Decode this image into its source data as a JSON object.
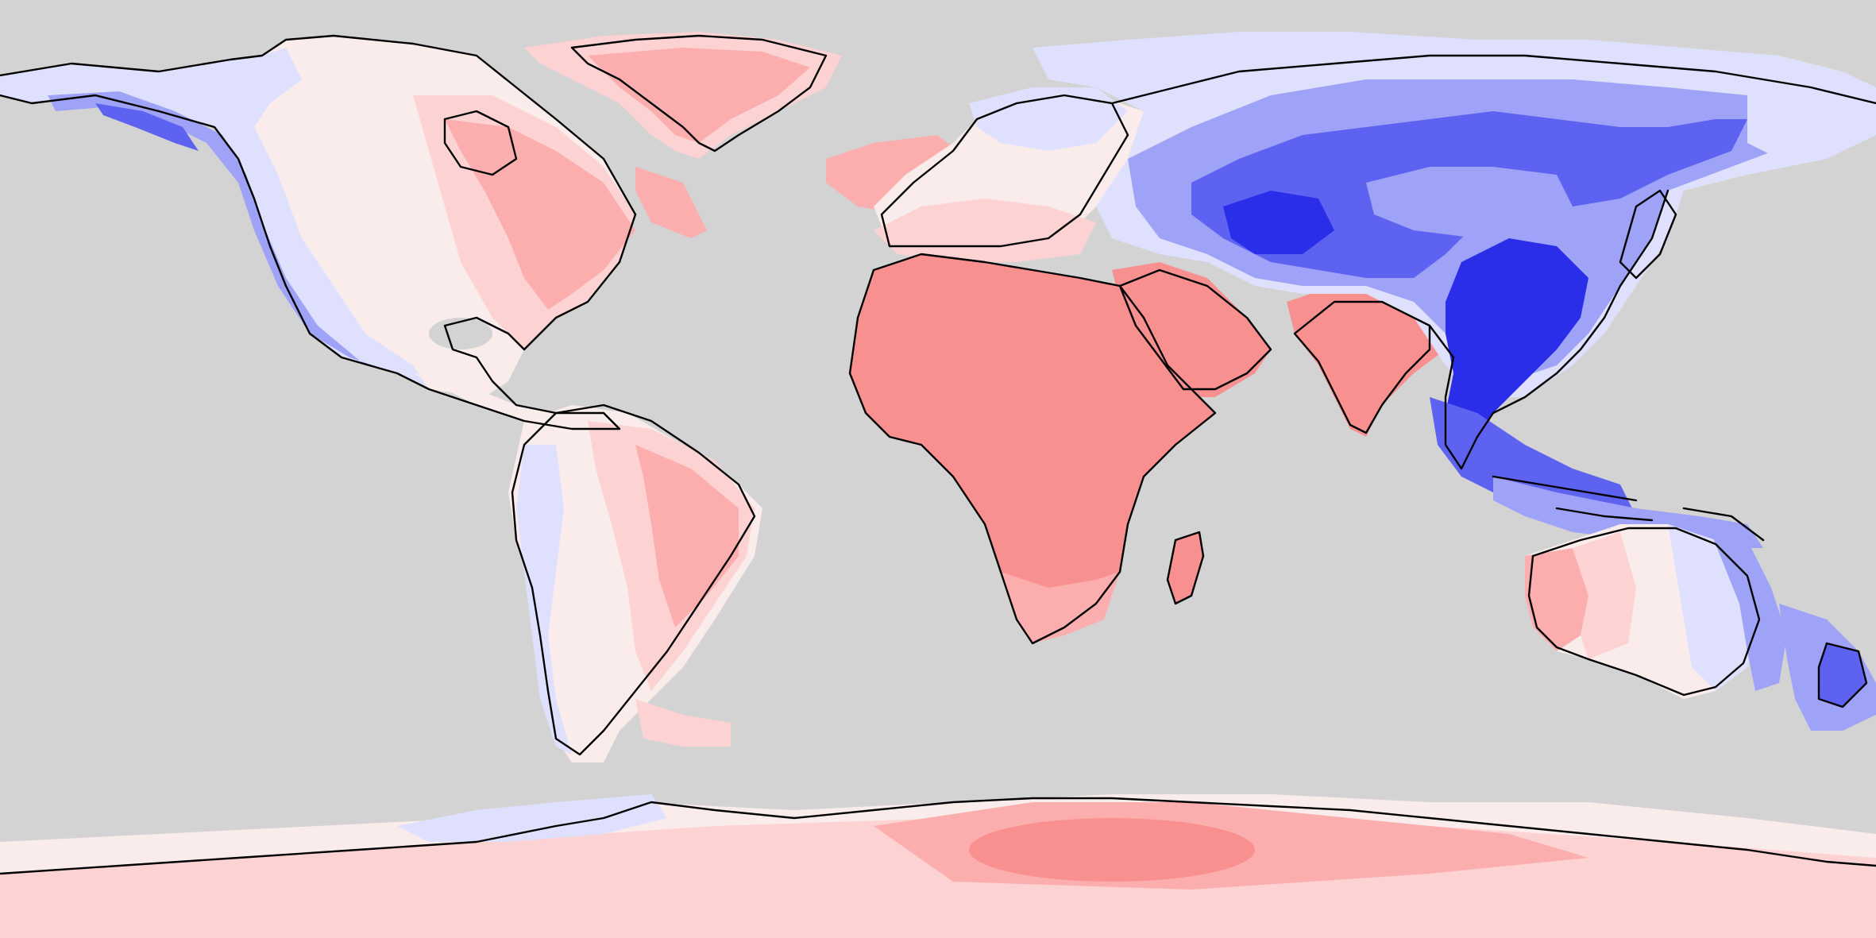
{
  "map": {
    "projection": "equirectangular",
    "background_color": "#d3d3d3",
    "coastline_color": "#000000",
    "color_scale": {
      "strong_negative": "#2a2ee8",
      "negative": "#5d62f0",
      "mild_negative": "#9fa3f7",
      "slight_negative": "#dfe0fd",
      "neutral": "#fbecec",
      "slight_positive": "#fdd2d2",
      "positive": "#fcaeae",
      "strong_positive": "#f99090"
    },
    "regions": [
      {
        "name": "north-america-west-coast",
        "sign": "negative"
      },
      {
        "name": "north-america-east",
        "sign": "positive"
      },
      {
        "name": "greenland",
        "sign": "positive"
      },
      {
        "name": "south-america-east",
        "sign": "positive"
      },
      {
        "name": "south-america-west",
        "sign": "negative"
      },
      {
        "name": "europe",
        "sign": "positive"
      },
      {
        "name": "africa",
        "sign": "positive"
      },
      {
        "name": "arabia",
        "sign": "positive"
      },
      {
        "name": "india",
        "sign": "positive"
      },
      {
        "name": "central-asia",
        "sign": "negative"
      },
      {
        "name": "east-asia",
        "sign": "negative"
      },
      {
        "name": "southeast-asia",
        "sign": "negative"
      },
      {
        "name": "australia-west",
        "sign": "positive"
      },
      {
        "name": "australia-east",
        "sign": "negative"
      },
      {
        "name": "new-zealand",
        "sign": "negative"
      },
      {
        "name": "antarctica",
        "sign": "positive"
      }
    ]
  }
}
